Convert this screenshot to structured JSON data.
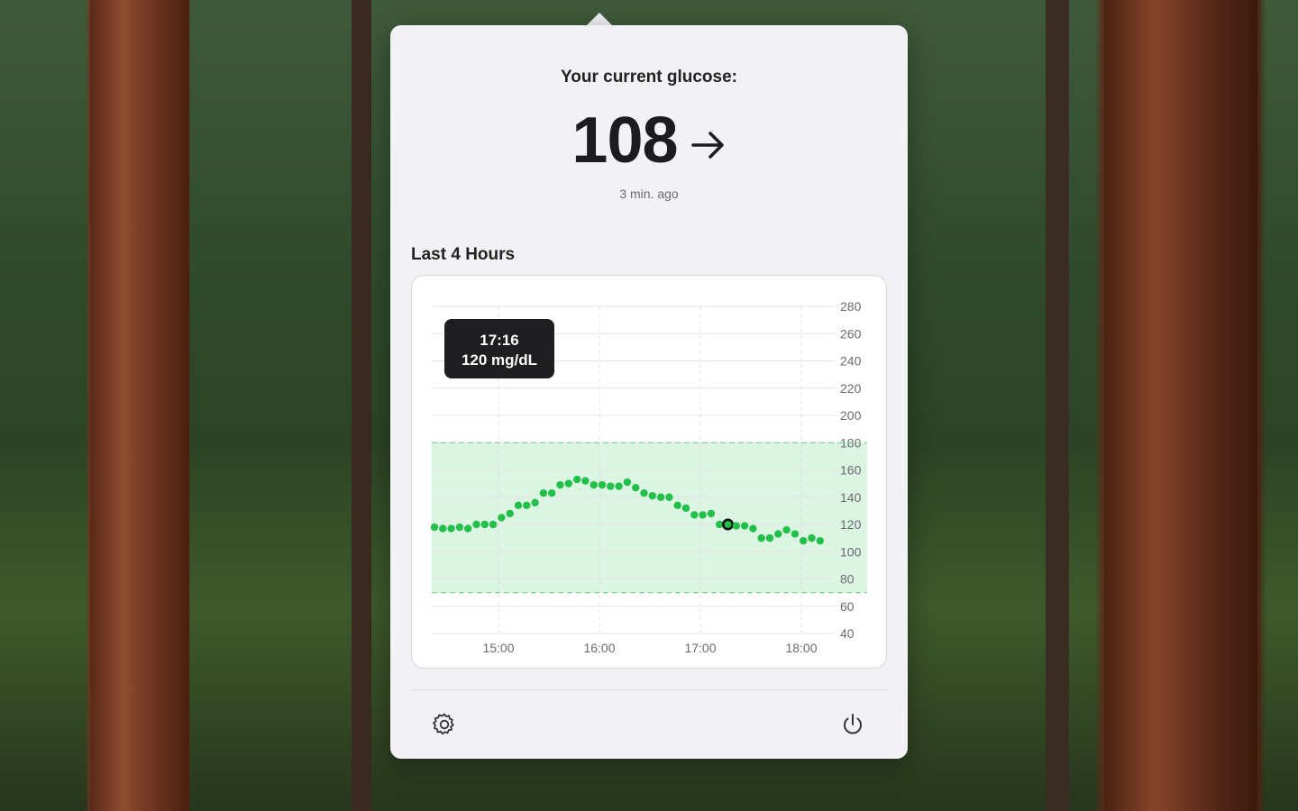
{
  "popover": {
    "headline": "Your current glucose:",
    "current_value": "108",
    "trend_icon": "right-arrow-icon",
    "updated": "3 min. ago",
    "section_title": "Last 4 Hours"
  },
  "tooltip": {
    "time": "17:16",
    "value": "120 mg/dL"
  },
  "footer": {
    "settings_icon": "gear-icon",
    "quit_icon": "power-icon"
  },
  "colors": {
    "point": "#22c04a",
    "range_fill": "#dcf5e3",
    "range_line": "#7fd496",
    "selected_point": "#111111"
  },
  "chart_data": {
    "type": "scatter",
    "y_ticks": [
      280,
      260,
      240,
      220,
      200,
      180,
      160,
      140,
      120,
      100,
      80,
      60,
      40
    ],
    "x_ticks": [
      "15:00",
      "16:00",
      "17:00",
      "18:00"
    ],
    "ylim": [
      40,
      280
    ],
    "target_range": [
      70,
      180
    ],
    "grid": true,
    "selected_index": 35,
    "readings": [
      118,
      117,
      117,
      118,
      117,
      120,
      120,
      120,
      125,
      128,
      134,
      134,
      136,
      143,
      143,
      149,
      150,
      153,
      152,
      149,
      149,
      148,
      148,
      151,
      147,
      143,
      141,
      140,
      140,
      134,
      132,
      127,
      127,
      128,
      120,
      120,
      119,
      119,
      117,
      110,
      110,
      113,
      116,
      113,
      108,
      110,
      108
    ]
  }
}
